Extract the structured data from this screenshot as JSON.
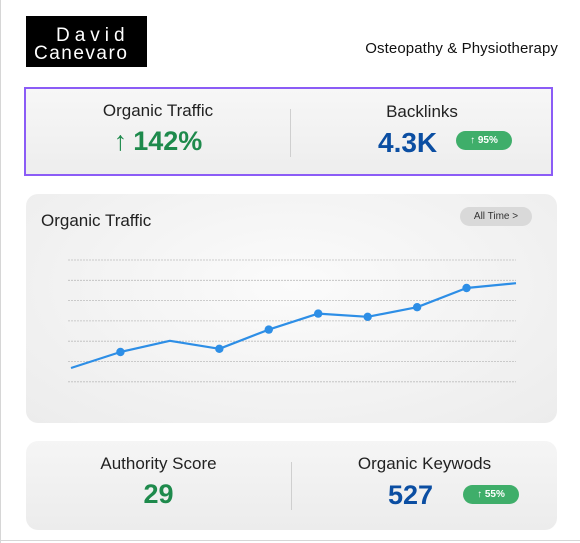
{
  "brand": {
    "logo_line1": "David",
    "logo_line2": "Canevaro",
    "tagline": "Osteopathy & Physiotherapy"
  },
  "highlight": {
    "organic_traffic": {
      "label": "Organic Traffic",
      "arrow": "↑",
      "value": "142%"
    },
    "backlinks": {
      "label": "Backlinks",
      "value": "4.3K",
      "badge": "↑ 95%"
    }
  },
  "traffic_chart": {
    "title": "Organic Traffic",
    "range_label": "All Time  >",
    "colors": {
      "line": "#2d8ee6",
      "grid": "#bdbdbd"
    }
  },
  "bottom": {
    "authority": {
      "label": "Authority Score",
      "value": "29"
    },
    "keywords": {
      "label": "Organic Keywods",
      "value": "527",
      "badge": "↑ 55%"
    }
  },
  "colors": {
    "accent_border": "#8b5cf6",
    "green": "#1e8a4c",
    "blue": "#0b4ea2",
    "badge": "#3fae6a"
  },
  "chart_data": {
    "type": "line",
    "x": [
      0,
      1,
      2,
      3,
      4,
      5,
      6,
      7,
      8,
      9
    ],
    "series": [
      {
        "values": [
          1.0,
          2.0,
          2.7,
          2.2,
          3.4,
          4.4,
          4.2,
          4.8,
          6.0,
          6.3
        ]
      }
    ],
    "markers_at": [
      1,
      3,
      4,
      5,
      6,
      7,
      8
    ],
    "ylim": [
      0,
      9
    ],
    "grid": true,
    "xlabel": "",
    "ylabel": ""
  }
}
